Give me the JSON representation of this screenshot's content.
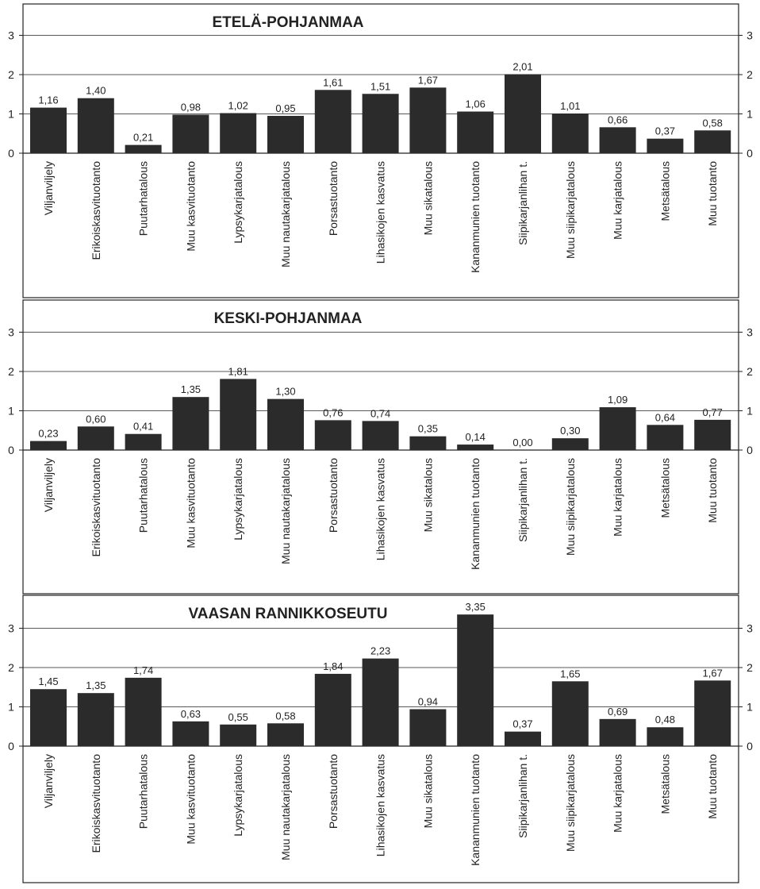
{
  "chart_data": [
    {
      "type": "bar",
      "title": "ETELÄ-POHJANMAA",
      "categories": [
        "Viljanviljely",
        "Erikoiskasvituotanto",
        "Puutarhatalous",
        "Muu kasvituotanto",
        "Lypsykarjatalous",
        "Muu nautakarjatalous",
        "Porsastuotanto",
        "Lihasikojen kasvatus",
        "Muu sikatalous",
        "Kananmunien tuotanto",
        "Siipikarjanlihan t.",
        "Muu siipikarjatalous",
        "Muu karjatalous",
        "Metsätalous",
        "Muu tuotanto"
      ],
      "values": [
        1.16,
        1.4,
        0.21,
        0.98,
        1.02,
        0.95,
        1.61,
        1.51,
        1.67,
        1.06,
        2.01,
        1.01,
        0.66,
        0.37,
        0.58
      ],
      "value_labels": [
        "1,16",
        "1,40",
        "0,21",
        "0,98",
        "1,02",
        "0,95",
        "1,61",
        "1,51",
        "1,67",
        "1,06",
        "2,01",
        "1,01",
        "0,66",
        "0,37",
        "0,58"
      ],
      "ylim": [
        0,
        3
      ],
      "yticks": [
        "0",
        "1",
        "2",
        "3"
      ],
      "grid": true,
      "bar_color": "#2b2b2b"
    },
    {
      "type": "bar",
      "title": "KESKI-POHJANMAA",
      "categories": [
        "Viljanviljely",
        "Erikoiskasvituotanto",
        "Puutarhatalous",
        "Muu kasvituotanto",
        "Lypsykarjatalous",
        "Muu nautakarjatalous",
        "Porsastuotanto",
        "Lihasikojen kasvatus",
        "Muu sikatalous",
        "Kananmunien tuotanto",
        "Siipikarjanlihan t.",
        "Muu siipikarjatalous",
        "Muu karjatalous",
        "Metsätalous",
        "Muu tuotanto"
      ],
      "values": [
        0.23,
        0.6,
        0.41,
        1.35,
        1.81,
        1.3,
        0.76,
        0.74,
        0.35,
        0.14,
        0.0,
        0.3,
        1.09,
        0.64,
        0.77
      ],
      "value_labels": [
        "0,23",
        "0,60",
        "0,41",
        "1,35",
        "1,81",
        "1,30",
        "0,76",
        "0,74",
        "0,35",
        "0,14",
        "0,00",
        "0,30",
        "1,09",
        "0,64",
        "0,77"
      ],
      "ylim": [
        0,
        3
      ],
      "yticks": [
        "0",
        "1",
        "2",
        "3"
      ],
      "grid": true,
      "bar_color": "#2b2b2b"
    },
    {
      "type": "bar",
      "title": "VAASAN RANNIKKOSEUTU",
      "categories": [
        "Viljanviljely",
        "Erikoiskasvituotanto",
        "Puutarhatalous",
        "Muu kasvituotanto",
        "Lypsykarjatalous",
        "Muu nautakarjatalous",
        "Porsastuotanto",
        "Lihasikojen kasvatus",
        "Muu sikatalous",
        "Kananmunien tuotanto",
        "Siipikarjanlihan t.",
        "Muu siipikarjatalous",
        "Muu karjatalous",
        "Metsätalous",
        "Muu tuotanto"
      ],
      "values": [
        1.45,
        1.35,
        1.74,
        0.63,
        0.55,
        0.58,
        1.84,
        2.23,
        0.94,
        3.35,
        0.37,
        1.65,
        0.69,
        0.48,
        1.67
      ],
      "value_labels": [
        "1,45",
        "1,35",
        "1,74",
        "0,63",
        "0,55",
        "0,58",
        "1,84",
        "2,23",
        "0,94",
        "3,35",
        "0,37",
        "1,65",
        "0,69",
        "0,48",
        "1,67"
      ],
      "ylim": [
        0,
        3
      ],
      "yticks": [
        "0",
        "1",
        "2",
        "3"
      ],
      "grid": true,
      "bar_color": "#2b2b2b"
    }
  ]
}
